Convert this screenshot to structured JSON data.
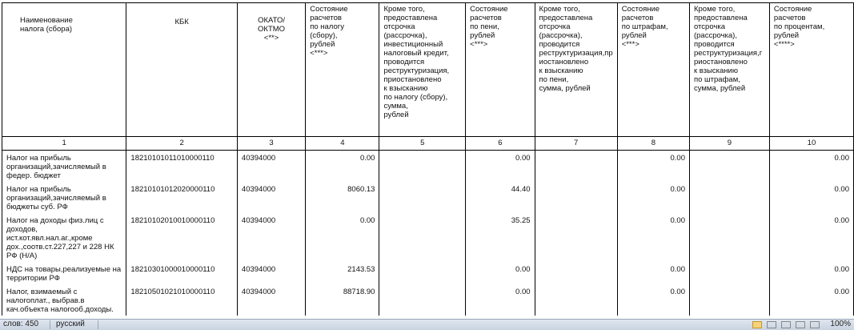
{
  "table": {
    "headers": [
      "Наименование\nналога (сбора)",
      "КБК",
      "ОКАТО/\nОКТМО\n<**>",
      "Состояние\nрасчетов\nпо налогу\n(сбору),\nрублей\n<***>",
      "Кроме того,\nпредоставлена\nотсрочка\n (рассрочка),\nинвестиционный\nналоговый кредит,\nпроводится\nреструктуризация,\nприостановлено\nк взысканию\nпо налогу (сбору),\nсумма,\nрублей",
      "Состояние\nрасчетов\nпо пени,\nрублей\n<***>",
      "Кроме того,\nпредоставлена\nотсрочка\n (рассрочка),\nпроводится\nреструктуризация,пр\nиостановлено\nк взысканию\nпо пени,\nсумма, рублей",
      "Состояние\nрасчетов\nпо штрафам,\nрублей\n<***>",
      "Кроме того,\nпредоставлена\nотсрочка\n (рассрочка),\nпроводится\nреструктуризация,г\nриостановлено\nк взысканию\nпо штрафам,\nсумма, рублей",
      "Состояние\nрасчетов\nпо процентам,\nрублей\n<****>"
    ],
    "column_numbers": [
      "1",
      "2",
      "3",
      "4",
      "5",
      "6",
      "7",
      "8",
      "9",
      "10"
    ],
    "rows": [
      {
        "name": "Налог на прибыль организаций,зачисляемый в федер. бюджет",
        "kbk": "18210101011010000110",
        "okato": "40394000",
        "c4": "0.00",
        "c5": "",
        "c6": "0.00",
        "c7": "",
        "c8": "0.00",
        "c9": "",
        "c10": "0.00"
      },
      {
        "name": "Налог на прибыль организаций,зачисляемый в бюджеты суб. РФ",
        "kbk": "18210101012020000110",
        "okato": "40394000",
        "c4": "8060.13",
        "c5": "",
        "c6": "44.40",
        "c7": "",
        "c8": "0.00",
        "c9": "",
        "c10": "0.00"
      },
      {
        "name": "Налог на доходы физ.лиц с доходов, ист.кот.явл.нал.аг.,кроме дох.,соотв.ст.227,227 и 228 НК РФ (Н/А)",
        "kbk": "18210102010010000110",
        "okato": "40394000",
        "c4": "0.00",
        "c5": "",
        "c6": "35.25",
        "c7": "",
        "c8": "0.00",
        "c9": "",
        "c10": "0.00"
      },
      {
        "name": "НДС на товары,реализуемые на территории РФ",
        "kbk": "18210301000010000110",
        "okato": "40394000",
        "c4": "2143.53",
        "c5": "",
        "c6": "0.00",
        "c7": "",
        "c8": "0.00",
        "c9": "",
        "c10": "0.00"
      },
      {
        "name": "Налог, взимаемый с налогоплат., выбрав.в кач.объекта налогооб.доходы.",
        "kbk": "18210501021010000110",
        "okato": "40394000",
        "c4": "88718.90",
        "c5": "",
        "c6": "0.00",
        "c7": "",
        "c8": "0.00",
        "c9": "",
        "c10": "0.00"
      }
    ]
  },
  "status_bar": {
    "word_count": "слов: 450",
    "language": "русский",
    "zoom": "100%"
  }
}
